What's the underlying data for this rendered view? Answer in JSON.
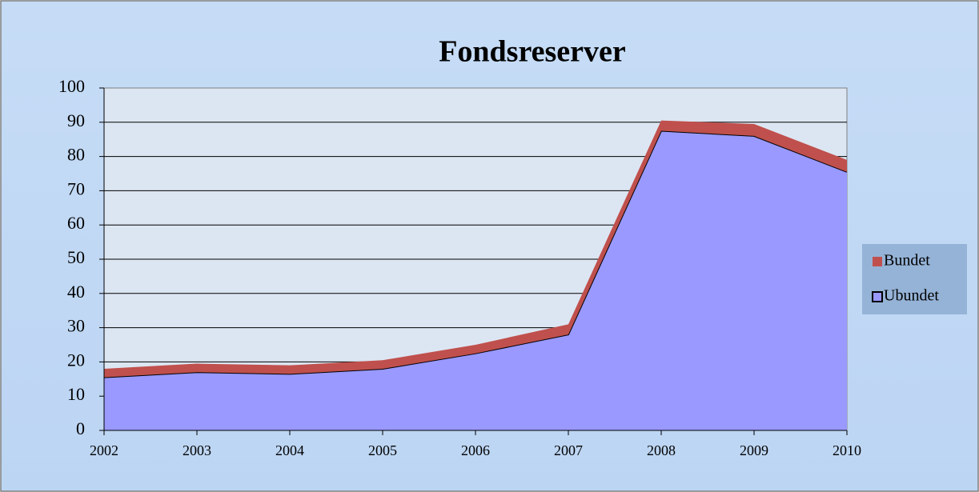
{
  "chart_data": {
    "type": "stacked_area",
    "title": "Fondsreserver",
    "categories": [
      "2002",
      "2003",
      "2004",
      "2005",
      "2006",
      "2007",
      "2008",
      "2009",
      "2010"
    ],
    "series": [
      {
        "name": "Ubundet",
        "color": "#9999ff",
        "values": [
          15.5,
          17,
          16.5,
          18,
          22.5,
          28,
          87.5,
          86,
          75.5
        ]
      },
      {
        "name": "Bundet",
        "color": "#c0504d",
        "values": [
          2.5,
          2.5,
          2.5,
          2.5,
          2.5,
          3,
          3,
          3.5,
          3.5
        ]
      }
    ],
    "ylim": [
      0,
      100
    ],
    "yticks": [
      0,
      10,
      20,
      30,
      40,
      50,
      60,
      70,
      80,
      90,
      100
    ],
    "grid": true,
    "legend": "right"
  }
}
